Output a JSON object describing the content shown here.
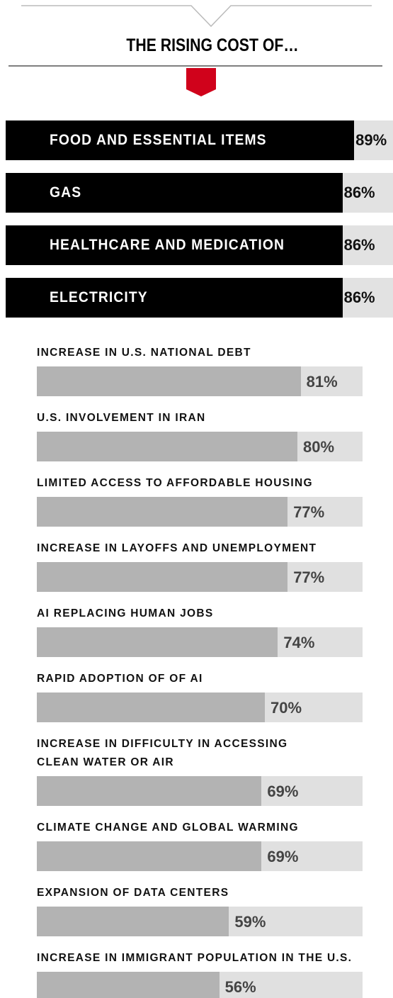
{
  "chart_data": [
    {
      "type": "bar",
      "title": "THE RISING COST OF…",
      "color": "#000000",
      "track_color": "#e2e2e2",
      "categories": [
        "FOOD AND ESSENTIAL ITEMS",
        "GAS",
        "HEALTHCARE AND MEDICATION",
        "ELECTRICITY"
      ],
      "values": [
        89,
        86,
        86,
        86
      ],
      "value_labels": [
        "89%",
        "86%",
        "86%",
        "86%"
      ]
    },
    {
      "type": "bar",
      "color": "#b3b3b3",
      "track_color": "#e0e0e0",
      "categories": [
        "INCREASE IN U.S. NATIONAL DEBT",
        "U.S. INVOLVEMENT IN IRAN",
        "LIMITED ACCESS TO AFFORDABLE HOUSING",
        "INCREASE IN LAYOFFS AND UNEMPLOYMENT",
        "AI REPLACING HUMAN JOBS",
        "RAPID ADOPTION OF OF AI",
        "INCREASE IN DIFFICULTY IN ACCESSING\nCLEAN WATER OR AIR",
        "CLIMATE CHANGE AND GLOBAL WARMING",
        "EXPANSION OF DATA CENTERS",
        "INCREASE IN IMMIGRANT POPULATION IN THE U.S."
      ],
      "values": [
        81,
        80,
        77,
        77,
        74,
        70,
        69,
        69,
        59,
        56
      ],
      "value_labels": [
        "81%",
        "80%",
        "77%",
        "77%",
        "74%",
        "70%",
        "69%",
        "69%",
        "59%",
        "56%"
      ]
    }
  ]
}
